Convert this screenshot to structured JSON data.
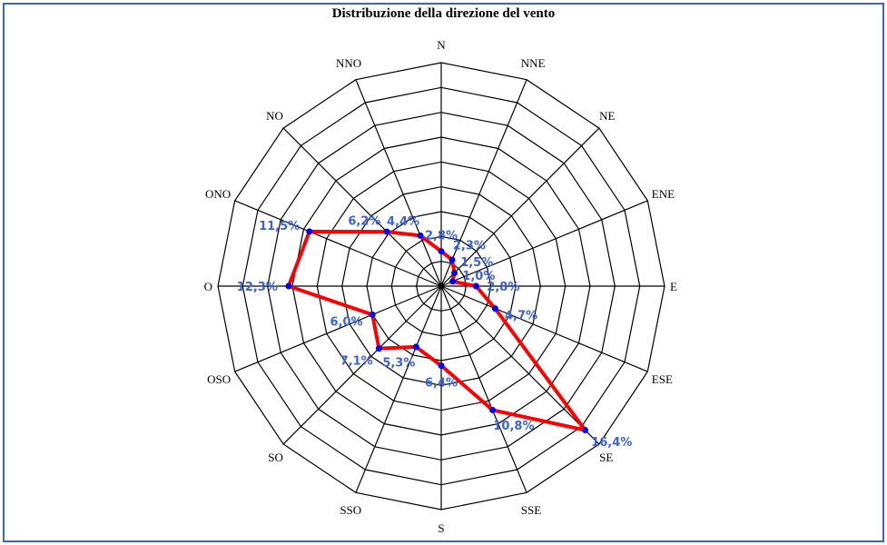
{
  "chart_data": {
    "type": "radar",
    "title": "Distribuzione della direzione del vento",
    "categories": [
      "N",
      "NNE",
      "NE",
      "ENE",
      "E",
      "ESE",
      "SE",
      "SSE",
      "S",
      "SSO",
      "SO",
      "OSO",
      "O",
      "ONO",
      "NO",
      "NNO"
    ],
    "series": [
      {
        "values": [
          2.8,
          2.3,
          1.5,
          1.0,
          2.8,
          4.7,
          16.4,
          10.8,
          6.4,
          5.3,
          7.1,
          6.0,
          12.3,
          11.5,
          6.2,
          4.4
        ],
        "value_labels": [
          "2,8%",
          "2,3%",
          "1,5%",
          "1,0%",
          "2,8%",
          "4,7%",
          "16,4%",
          "10,8%",
          "6,4%",
          "5,3%",
          "7,1%",
          "6,0%",
          "12,3%",
          "11,5%",
          "6,2%",
          "4,4%"
        ],
        "color": "#ff0000"
      }
    ],
    "rlim": [
      0,
      18
    ],
    "ring_step": 2,
    "grid": true,
    "colors": {
      "line": "#ff0000",
      "marker": "#0000ee",
      "value_label": "#3a63dc",
      "grid": "#000000",
      "border": "#3a63dc"
    }
  }
}
